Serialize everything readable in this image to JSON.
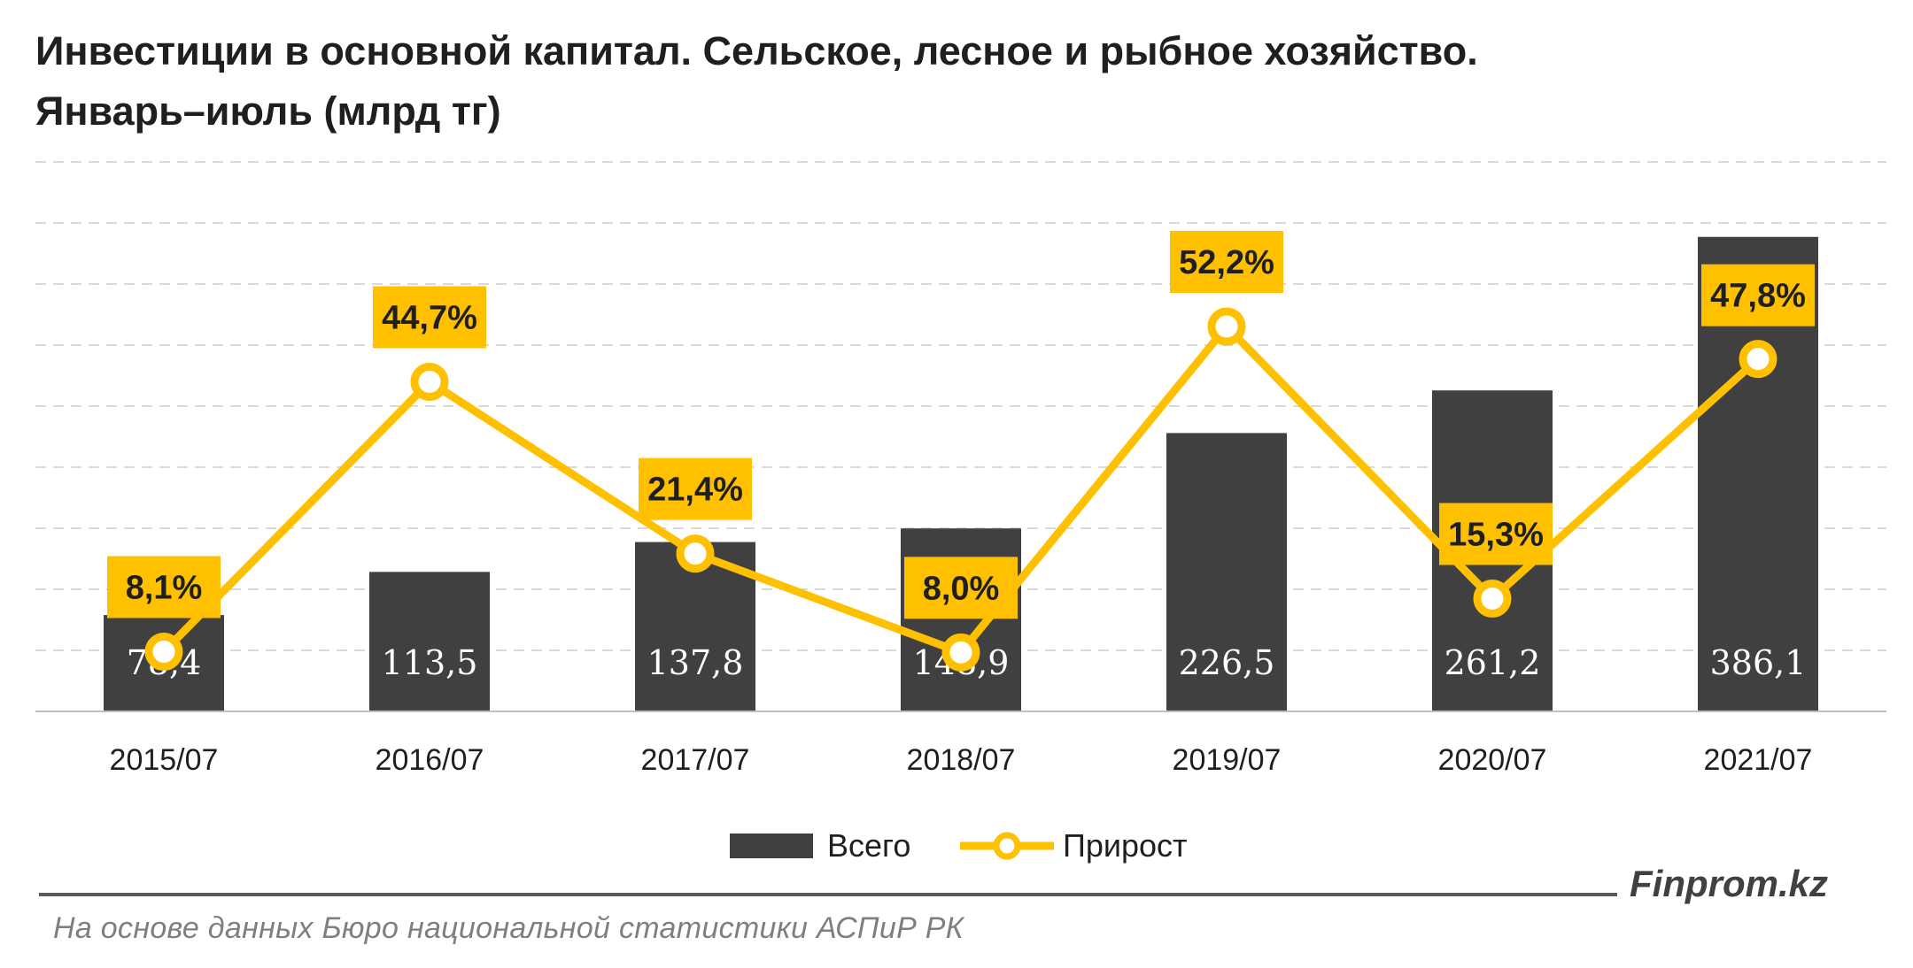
{
  "title_line1": "Инвестиции в основной капитал. Сельское, лесное и рыбное хозяйство.",
  "title_line2": "Январь–июль (млрд тг)",
  "brand": "Finprom.kz",
  "source": "На основе данных Бюро национальной статистики АСПиР РК",
  "chart_data": {
    "type": "bar",
    "categories": [
      "2015/07",
      "2016/07",
      "2017/07",
      "2018/07",
      "2019/07",
      "2020/07",
      "2021/07"
    ],
    "series": [
      {
        "name": "Всего",
        "type": "bar",
        "values": [
          78.4,
          113.5,
          137.8,
          148.9,
          226.5,
          261.2,
          386.1
        ],
        "labels": [
          "78,4",
          "113,5",
          "137,8",
          "148,9",
          "226,5",
          "261,2",
          "386,1"
        ],
        "color": "#404040"
      },
      {
        "name": "Прирост",
        "type": "line",
        "values": [
          8.1,
          44.7,
          21.4,
          8.0,
          52.2,
          15.3,
          47.8
        ],
        "labels": [
          "8,1%",
          "44,7%",
          "21,4%",
          "8,0%",
          "52,2%",
          "15,3%",
          "47,8%"
        ],
        "color": "#FFC000"
      }
    ],
    "bar_axis_range": [
      0,
      450
    ],
    "line_axis_range": [
      0,
      75
    ],
    "grid": true,
    "legend": "bottom"
  }
}
